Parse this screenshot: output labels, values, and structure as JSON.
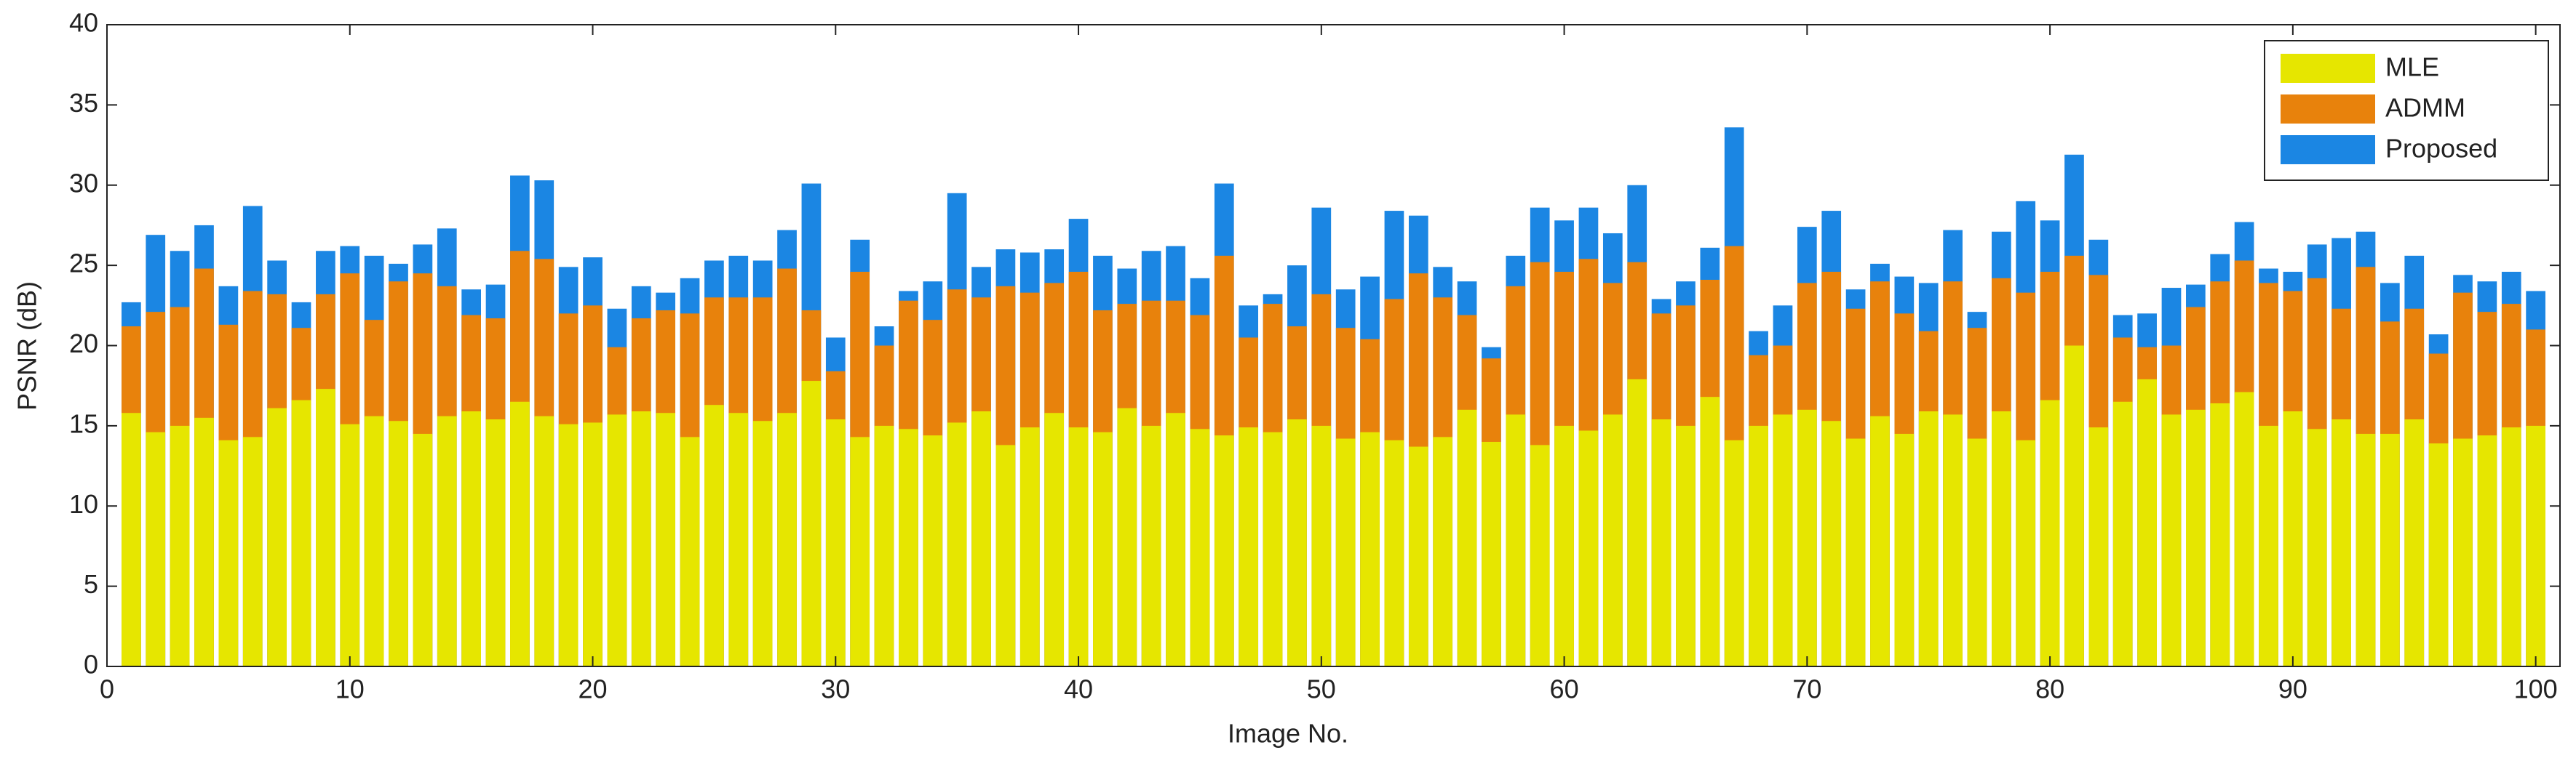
{
  "chart_data": {
    "type": "bar",
    "xlabel": "Image No.",
    "ylabel": "PSNR (dB)",
    "x": [
      1,
      2,
      3,
      4,
      5,
      6,
      7,
      8,
      9,
      10,
      11,
      12,
      13,
      14,
      15,
      16,
      17,
      18,
      19,
      20,
      21,
      22,
      23,
      24,
      25,
      26,
      27,
      28,
      29,
      30,
      31,
      32,
      33,
      34,
      35,
      36,
      37,
      38,
      39,
      40,
      41,
      42,
      43,
      44,
      45,
      46,
      47,
      48,
      49,
      50,
      51,
      52,
      53,
      54,
      55,
      56,
      57,
      58,
      59,
      60,
      61,
      62,
      63,
      64,
      65,
      66,
      67,
      68,
      69,
      70,
      71,
      72,
      73,
      74,
      75,
      76,
      77,
      78,
      79,
      80,
      81,
      82,
      83,
      84,
      85,
      86,
      87,
      88,
      89,
      90,
      91,
      92,
      93,
      94,
      95,
      96,
      97,
      98,
      99,
      100
    ],
    "xlim": [
      0,
      101
    ],
    "xticks": [
      0,
      10,
      20,
      30,
      40,
      50,
      60,
      70,
      80,
      90,
      100
    ],
    "ylim": [
      0,
      40
    ],
    "yticks": [
      0,
      5,
      10,
      15,
      20,
      25,
      30,
      35,
      40
    ],
    "legend": "upper right",
    "series": [
      {
        "name": "MLE",
        "color": "#e6e600",
        "values": [
          15.8,
          14.6,
          15.0,
          15.5,
          14.1,
          14.3,
          16.1,
          16.6,
          17.3,
          15.1,
          15.6,
          15.3,
          14.5,
          15.6,
          15.9,
          15.4,
          16.5,
          15.6,
          15.1,
          15.2,
          15.7,
          15.9,
          15.8,
          14.3,
          16.3,
          15.8,
          15.3,
          15.8,
          17.8,
          15.4,
          14.3,
          15.0,
          14.8,
          14.4,
          15.2,
          15.9,
          13.8,
          14.9,
          15.8,
          14.9,
          14.6,
          16.1,
          15.0,
          15.8,
          14.8,
          14.4,
          14.9,
          14.6,
          15.4,
          15.0,
          14.2,
          14.6,
          14.1,
          13.7,
          14.3,
          16.0,
          14.0,
          15.7,
          13.8,
          15.0,
          14.7,
          15.7,
          17.9,
          15.4,
          15.0,
          16.8,
          14.1,
          15.0,
          15.7,
          16.0,
          15.3,
          14.2,
          15.6,
          14.5,
          15.9,
          15.7,
          14.2,
          15.9,
          14.1,
          16.6,
          20.0,
          14.9,
          16.5,
          17.9,
          15.7,
          16.0,
          16.4,
          17.1,
          15.0,
          15.9,
          14.8,
          15.4,
          14.5,
          14.5,
          15.4,
          13.9,
          14.2,
          14.4,
          14.9,
          15.0
        ]
      },
      {
        "name": "ADMM",
        "color": "#e8820c",
        "values": [
          21.2,
          22.1,
          22.4,
          24.8,
          21.3,
          23.4,
          23.2,
          21.1,
          23.2,
          24.5,
          21.6,
          24.0,
          24.5,
          23.7,
          21.9,
          21.7,
          25.9,
          25.4,
          22.0,
          22.5,
          19.9,
          21.7,
          22.2,
          22.0,
          23.0,
          23.0,
          23.0,
          24.8,
          22.2,
          18.4,
          24.6,
          20.0,
          22.8,
          21.6,
          23.5,
          23.0,
          23.7,
          23.3,
          23.9,
          24.6,
          22.2,
          22.6,
          22.8,
          22.8,
          21.9,
          25.6,
          20.5,
          22.6,
          21.2,
          23.2,
          21.1,
          20.4,
          22.9,
          24.5,
          23.0,
          21.9,
          19.2,
          23.7,
          25.2,
          24.6,
          25.4,
          23.9,
          25.2,
          22.0,
          22.5,
          24.1,
          26.2,
          19.4,
          20.0,
          23.9,
          24.6,
          22.3,
          24.0,
          22.0,
          20.9,
          24.0,
          21.1,
          24.2,
          23.3,
          24.6,
          25.6,
          24.4,
          20.5,
          19.9,
          20.0,
          22.4,
          24.0,
          25.3,
          23.9,
          23.4,
          24.2,
          22.3,
          24.9,
          21.5,
          22.3,
          19.5,
          23.3,
          22.1,
          22.6,
          21.0
        ]
      },
      {
        "name": "Proposed",
        "color": "#1b86e3",
        "values": [
          22.7,
          26.9,
          25.9,
          27.5,
          23.7,
          28.7,
          25.3,
          22.7,
          25.9,
          26.2,
          25.6,
          25.1,
          26.3,
          27.3,
          23.5,
          23.8,
          30.6,
          30.3,
          24.9,
          25.5,
          22.3,
          23.7,
          23.3,
          24.2,
          25.3,
          25.6,
          25.3,
          27.2,
          30.1,
          20.5,
          26.6,
          21.2,
          23.4,
          24.0,
          29.5,
          24.9,
          26.0,
          25.8,
          26.0,
          27.9,
          25.6,
          24.8,
          25.9,
          26.2,
          24.2,
          30.1,
          22.5,
          23.2,
          25.0,
          28.6,
          23.5,
          24.3,
          28.4,
          28.1,
          24.9,
          24.0,
          19.9,
          25.6,
          28.6,
          27.8,
          28.6,
          27.0,
          30.0,
          22.9,
          24.0,
          26.1,
          33.6,
          20.9,
          22.5,
          27.4,
          28.4,
          23.5,
          25.1,
          24.3,
          23.9,
          27.2,
          22.1,
          27.1,
          29.0,
          27.8,
          31.9,
          26.6,
          21.9,
          22.0,
          23.6,
          23.8,
          25.7,
          27.7,
          24.8,
          24.6,
          26.3,
          26.7,
          27.1,
          23.9,
          25.6,
          20.7,
          24.4,
          24.0,
          24.6,
          23.4
        ]
      }
    ]
  }
}
